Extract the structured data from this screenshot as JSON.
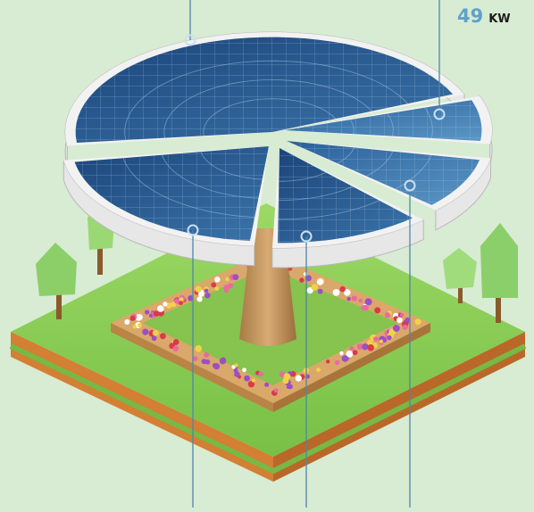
{
  "chart_data": {
    "type": "pie",
    "title": "",
    "slices": [
      {
        "callout": "top"
      },
      {
        "value": 49,
        "unit": "KW",
        "callout": "right"
      },
      {
        "callout": "bottom"
      },
      {
        "callout": "bottom"
      },
      {
        "callout": "bottom"
      }
    ]
  },
  "label": {
    "value": "49",
    "unit": "KW"
  },
  "colors": {
    "background": "#d8ebd3",
    "panel_dark": "#1f4e86",
    "panel_light": "#4a86b8",
    "panel_grid": "#9fc3e3",
    "rim": "#e7e7e7",
    "rim_shadow": "#b9b9b9",
    "grass": "#8ed05a",
    "grass_dark": "#5fa83a",
    "soil": "#e08a3b",
    "soil_dark": "#b9672a",
    "trunk": "#c99a62",
    "tree": "#8bd06a",
    "planter": "#d9a86a",
    "leader_line": "#4f86a8",
    "value_text": "#5ea2c8"
  }
}
